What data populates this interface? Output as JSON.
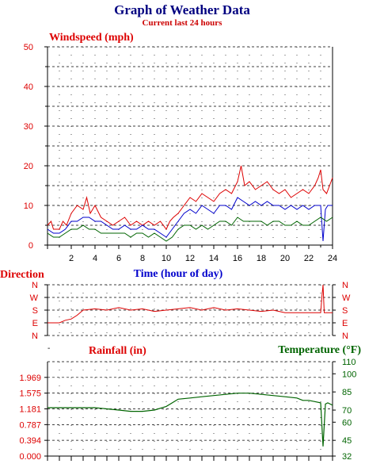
{
  "header": {
    "title": "Graph of Weather Data",
    "subtitle": "Current last 24 hours"
  },
  "colors": {
    "title": "#000080",
    "subtitle": "#cc0000",
    "red": "#dd0000",
    "blue": "#0000cc",
    "green": "#006400",
    "grid": "#000000"
  },
  "chart_data": [
    {
      "type": "line",
      "title": "Windspeed (mph)",
      "xlabel": "Time (hour of day)",
      "ylabel": "",
      "xlim": [
        0,
        24
      ],
      "ylim": [
        0,
        50
      ],
      "x_ticks": [
        2,
        4,
        6,
        8,
        10,
        12,
        14,
        16,
        18,
        20,
        22,
        24
      ],
      "y_ticks": [
        0,
        10,
        20,
        30,
        40,
        50
      ],
      "grid": true,
      "series": [
        {
          "color": "#dd0000",
          "x": [
            0,
            0.3,
            0.5,
            1,
            1.3,
            1.6,
            2,
            2.5,
            3,
            3.3,
            3.6,
            4,
            4.5,
            5,
            5.5,
            6,
            6.5,
            7,
            7.5,
            8,
            8.5,
            9,
            9.5,
            10,
            10.3,
            10.6,
            11,
            11.5,
            12,
            12.5,
            13,
            13.5,
            14,
            14.5,
            15,
            15.5,
            16,
            16.3,
            16.6,
            17,
            17.5,
            18,
            18.5,
            19,
            19.5,
            20,
            20.5,
            21,
            21.5,
            22,
            22.5,
            22.8,
            23,
            23.2,
            23.5,
            24
          ],
          "values": [
            5,
            6,
            4,
            4,
            6,
            5,
            8,
            10,
            9,
            12,
            8,
            10,
            7,
            6,
            5,
            6,
            7,
            5,
            6,
            5,
            6,
            5,
            6,
            4,
            6,
            7,
            8,
            10,
            12,
            11,
            13,
            12,
            11,
            13,
            14,
            13,
            16,
            20,
            15,
            16,
            14,
            15,
            16,
            14,
            13,
            14,
            12,
            13,
            14,
            13,
            15,
            17,
            19,
            14,
            13,
            17
          ]
        },
        {
          "color": "#0000cc",
          "x": [
            0,
            0.5,
            1,
            1.5,
            2,
            2.5,
            3,
            3.5,
            4,
            4.5,
            5,
            5.5,
            6,
            6.5,
            7,
            7.5,
            8,
            8.5,
            9,
            9.5,
            10,
            10.5,
            11,
            11.5,
            12,
            12.5,
            13,
            13.5,
            14,
            14.5,
            15,
            15.5,
            16,
            16.5,
            17,
            17.5,
            18,
            18.5,
            19,
            19.5,
            20,
            20.5,
            21,
            21.5,
            22,
            22.5,
            23,
            23.2,
            23.4,
            23.6,
            24
          ],
          "values": [
            4,
            3,
            3,
            4,
            6,
            6,
            7,
            7,
            6,
            6,
            5,
            4,
            4,
            5,
            4,
            4,
            5,
            4,
            4,
            3,
            2,
            4,
            6,
            8,
            9,
            8,
            10,
            9,
            8,
            10,
            10,
            9,
            12,
            11,
            10,
            11,
            10,
            11,
            10,
            10,
            9,
            10,
            9,
            10,
            9,
            10,
            10,
            1,
            9,
            10,
            10
          ]
        },
        {
          "color": "#006400",
          "x": [
            0,
            0.5,
            1,
            1.5,
            2,
            2.5,
            3,
            3.5,
            4,
            4.5,
            5,
            5.5,
            6,
            6.5,
            7,
            7.5,
            8,
            8.5,
            9,
            9.5,
            10,
            10.5,
            11,
            11.5,
            12,
            12.5,
            13,
            13.5,
            14,
            14.5,
            15,
            15.5,
            16,
            16.5,
            17,
            17.5,
            18,
            18.5,
            19,
            19.5,
            20,
            20.5,
            21,
            21.5,
            22,
            22.5,
            23,
            23.5,
            24
          ],
          "values": [
            3,
            2,
            2,
            3,
            4,
            4,
            5,
            4,
            4,
            3,
            3,
            3,
            3,
            3,
            2,
            3,
            3,
            2,
            3,
            2,
            1,
            2,
            4,
            5,
            5,
            4,
            5,
            4,
            5,
            6,
            6,
            5,
            7,
            6,
            6,
            6,
            6,
            5,
            6,
            6,
            5,
            5,
            6,
            5,
            5,
            6,
            7,
            6,
            7
          ]
        }
      ]
    },
    {
      "type": "line",
      "title": "Direction",
      "xlabel": "",
      "ylabel": "",
      "xlim": [
        0,
        24
      ],
      "ylim": [
        0,
        5
      ],
      "y_tick_labels": [
        "N",
        "E",
        "S",
        "W",
        "N"
      ],
      "grid": true,
      "series": [
        {
          "color": "#dd0000",
          "x": [
            0,
            1,
            1.5,
            2,
            2.5,
            3,
            4,
            5,
            6,
            7,
            8,
            9,
            10,
            11,
            12,
            13,
            14,
            15,
            16,
            17,
            18,
            19,
            20,
            21,
            22,
            22.5,
            23,
            23.1,
            23.2,
            23.3,
            24
          ],
          "values": [
            1,
            1,
            1.2,
            1.3,
            1.6,
            2,
            2.1,
            2,
            2.2,
            2,
            2.1,
            1.9,
            2,
            2.1,
            2.2,
            2,
            2.2,
            2,
            2.1,
            2,
            1.9,
            2,
            1.8,
            1.8,
            1.8,
            1.8,
            1.8,
            3,
            4,
            1.8,
            1.8
          ]
        }
      ]
    },
    {
      "type": "line",
      "title": "Rainfall (in)",
      "xlabel": "",
      "ylabel": "",
      "xlim": [
        0,
        24
      ],
      "ylim": [
        0,
        2.362
      ],
      "y_ticks": [
        0.0,
        0.394,
        0.787,
        1.181,
        1.575,
        1.969
      ],
      "grid": true,
      "series": []
    },
    {
      "type": "line",
      "title": "Temperature (°F)",
      "xlabel": "",
      "ylabel": "",
      "xlim": [
        0,
        24
      ],
      "ylim": [
        32,
        110
      ],
      "y_ticks": [
        32,
        45,
        60,
        70,
        85,
        100,
        110
      ],
      "grid": false,
      "series": [
        {
          "color": "#006400",
          "x": [
            0,
            2,
            4,
            5,
            6,
            7,
            8,
            9,
            10,
            10.5,
            11,
            12,
            13,
            14,
            15,
            16,
            17,
            18,
            19,
            20,
            21,
            21.5,
            22,
            22.5,
            23,
            23.2,
            23.4,
            23.6,
            24
          ],
          "values": [
            72,
            72,
            72,
            71,
            70,
            69,
            69,
            70,
            73,
            76,
            79,
            80,
            81,
            82,
            83,
            84,
            84,
            83,
            82,
            81,
            80,
            78,
            78,
            77,
            76,
            40,
            75,
            76,
            74
          ]
        }
      ]
    }
  ],
  "labels": {
    "windspeed": "Windspeed (mph)",
    "time_axis": "Time (hour of day)",
    "direction": "Direction",
    "rainfall": "Rainfall (in)",
    "temperature_prefix": "Temperature (",
    "temperature_unit": "°F)"
  },
  "wind_y_ticks": [
    "50",
    "40",
    "30",
    "20",
    "10",
    "0"
  ],
  "time_ticks": [
    "2",
    "4",
    "6",
    "8",
    "10",
    "12",
    "14",
    "16",
    "18",
    "20",
    "22",
    "24"
  ],
  "direction_ticks": [
    "N",
    "W",
    "S",
    "E",
    "N"
  ],
  "rain_ticks": [
    "1.969",
    "1.575",
    "1.181",
    "0.787",
    "0.394",
    "0.000"
  ],
  "temp_ticks": [
    "110",
    "100",
    "85",
    "70",
    "60",
    "45",
    "32"
  ]
}
